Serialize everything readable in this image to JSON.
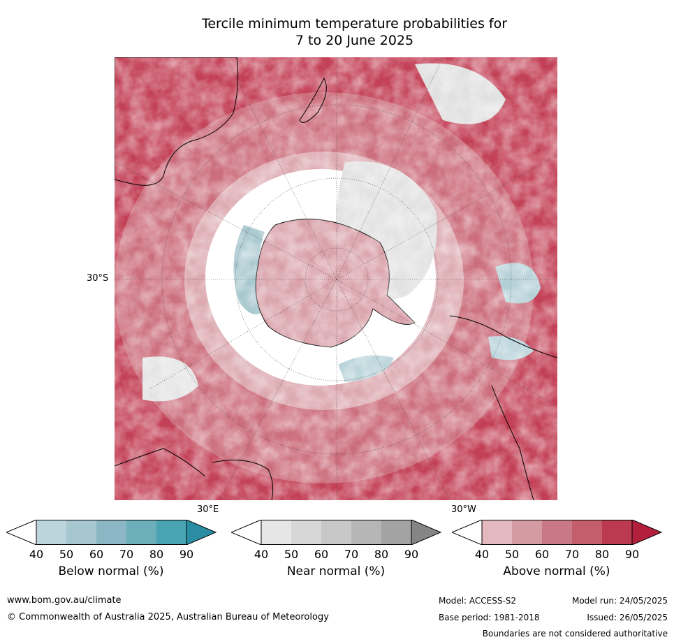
{
  "title_line1": "Tercile minimum temperature probabilities for",
  "title_line2": "7 to 20 June 2025",
  "lat_label": "30°S",
  "lon_labels": [
    "30°E",
    "30°W"
  ],
  "colorbars": [
    {
      "label": "Below normal (%)",
      "ticks": [
        "40",
        "50",
        "60",
        "70",
        "80",
        "90"
      ],
      "colors": [
        "#bcd5dc",
        "#a6c7cf",
        "#8ab7c3",
        "#6caeb9",
        "#48a3b3",
        "#2a8da4"
      ]
    },
    {
      "label": "Near normal (%)",
      "ticks": [
        "40",
        "50",
        "60",
        "70",
        "80",
        "90"
      ],
      "colors": [
        "#e6e6e6",
        "#d7d7d7",
        "#c8c8c8",
        "#b6b6b6",
        "#a3a3a3",
        "#858585"
      ]
    },
    {
      "label": "Above normal (%)",
      "ticks": [
        "40",
        "50",
        "60",
        "70",
        "80",
        "90"
      ],
      "colors": [
        "#e3b8be",
        "#d49ba3",
        "#c97985",
        "#c45d6c",
        "#bc3a4f",
        "#b3203d"
      ]
    }
  ],
  "footer": {
    "website": "www.bom.gov.au/climate",
    "copyright": "© Commonwealth of Australia 2025, Australian Bureau of Meteorology",
    "model": "Model: ACCESS-S2",
    "base_period": "Base period: 1981-2018",
    "model_run": "Model run: 24/05/2025",
    "issued": "Issued: 26/05/2025",
    "disclaimer": "Boundaries are not considered authoritative"
  }
}
